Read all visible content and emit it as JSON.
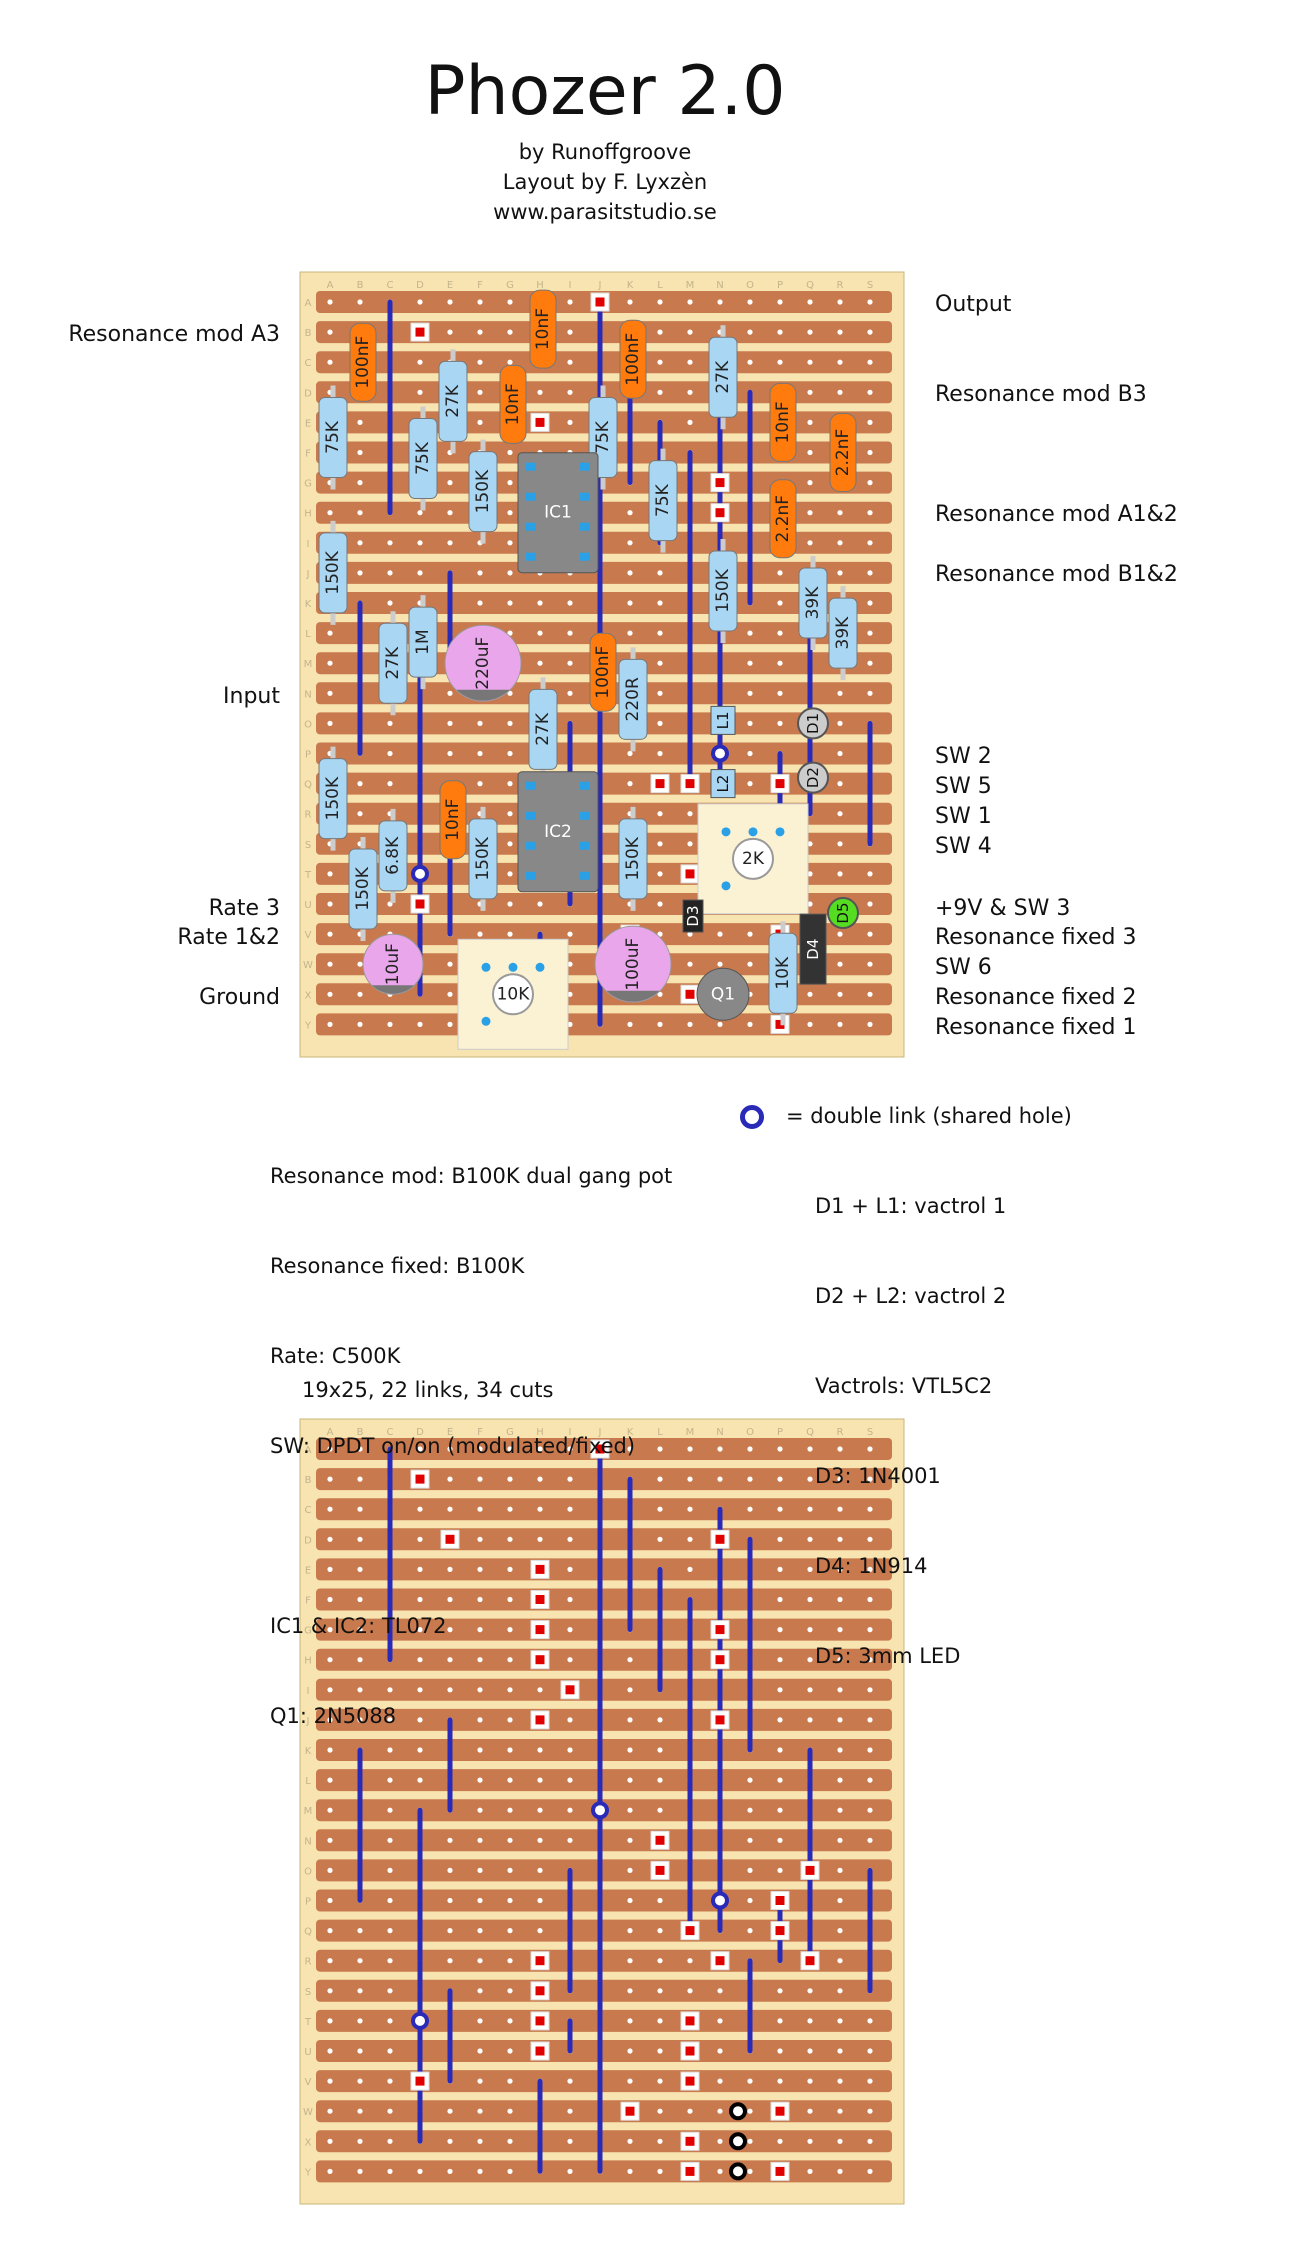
{
  "header": {
    "title": "Phozer 2.0",
    "credit1": "by Runoffgroove",
    "credit2": "Layout by F. Lyxzèn",
    "credit3": "www.parasitstudio.se"
  },
  "board": {
    "columns": [
      "A",
      "B",
      "C",
      "D",
      "E",
      "F",
      "G",
      "H",
      "I",
      "J",
      "K",
      "L",
      "M",
      "N",
      "O",
      "P",
      "Q",
      "R",
      "S"
    ],
    "rows": [
      "A",
      "B",
      "C",
      "D",
      "E",
      "F",
      "G",
      "H",
      "I",
      "J",
      "K",
      "L",
      "M",
      "N",
      "O",
      "P",
      "Q",
      "R",
      "S",
      "T",
      "U",
      "V",
      "W",
      "X",
      "Y"
    ]
  },
  "left_labels": {
    "res_mod_a3": "Resonance mod A3",
    "input": "Input",
    "rate3": "Rate 3",
    "rate12": "Rate 1&2",
    "ground": "Ground"
  },
  "right_labels": {
    "output": "Output",
    "res_mod_b3": "Resonance mod B3",
    "res_mod_a12": "Resonance mod A1&2",
    "res_mod_b12": "Resonance mod B1&2",
    "sw2": "SW 2",
    "sw5": "SW 5",
    "sw1": "SW 1",
    "sw4": "SW 4",
    "v9": "+9V & SW 3",
    "res_fixed3": "Resonance fixed 3",
    "sw6": "SW 6",
    "res_fixed2": "Resonance fixed 2",
    "res_fixed1": "Resonance fixed 1"
  },
  "components": {
    "c_100nF_a": "100nF",
    "c_10nF_a": "10nF",
    "c_10nF_b": "10nF",
    "c_100nF_b": "100nF",
    "c_10nF_c": "10nF",
    "c_2n2_a": "2.2nF",
    "c_2n2_b": "2.2nF",
    "c_100nF_c": "100nF",
    "c_10nF_d": "10nF",
    "r_75k_a": "75K",
    "r_27k_a": "27K",
    "r_75k_b": "75K",
    "r_150k_a": "150K",
    "r_75k_c": "75K",
    "r_27k_b": "27K",
    "r_75k_d": "75K",
    "r_150k_b": "150K",
    "r_27k_c": "27K",
    "r_1m": "1M",
    "r_27k_d": "27K",
    "r_220r": "220R",
    "r_150k_c": "150K",
    "r_39k_a": "39K",
    "r_39k_b": "39K",
    "r_150k_d": "150K",
    "r_6k8": "6.8K",
    "r_150k_e": "150K",
    "r_150k_f": "150K",
    "r_150k_g": "150K",
    "r_10k": "10K",
    "e_220uF": "220uF",
    "e_10uF": "10uF",
    "e_100uF": "100uF",
    "ic1": "IC1",
    "ic2": "IC2",
    "l1": "L1",
    "l2": "L2",
    "d1": "D1",
    "d2": "D2",
    "d3": "D3",
    "d4": "D4",
    "d5": "D5",
    "pot_2k": "2K",
    "pot_10k": "10K",
    "q1": "Q1"
  },
  "notes_left": [
    "Resonance mod: B100K dual gang pot",
    "Resonance fixed: B100K",
    "Rate: C500K",
    "SW: DPDT on/on (modulated/fixed)",
    "",
    "IC1 & IC2: TL072",
    "Q1: 2N5088"
  ],
  "notes_right": [
    "= double link (shared hole)",
    "D1 + L1: vactrol 1",
    "D2 + L2: vactrol 2",
    "Vactrols: VTL5C2",
    "D3: 1N4001",
    "D4: 1N914",
    "D5: 3mm LED"
  ],
  "footer": {
    "size_text": "19x25, 22 links, 34 cuts"
  },
  "colors": {
    "board": "#f8e4b0",
    "strip": "#c87a4e",
    "link": "#2a2ab8",
    "resistor": "#a9d6f2",
    "film_cap": "#ff7b0d",
    "electrolytic": "#eaa6ea",
    "ic": "#888888",
    "cut": "#e00000",
    "led": "#55dd22"
  }
}
